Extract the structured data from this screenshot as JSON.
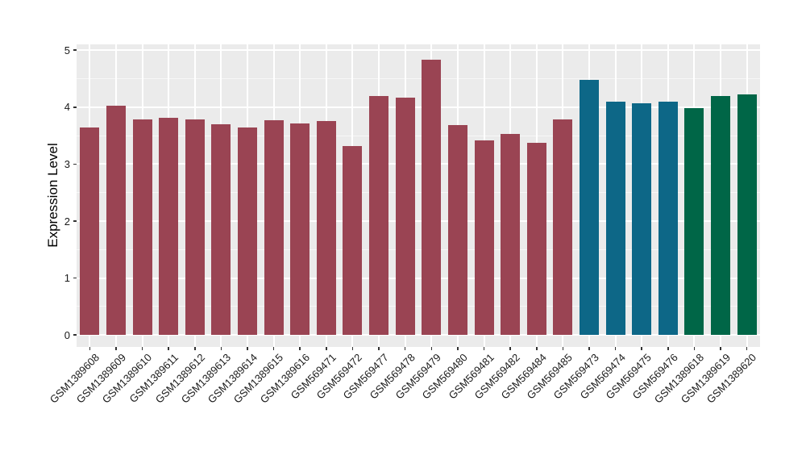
{
  "chart_data": {
    "type": "bar",
    "title": "",
    "xlabel": "",
    "ylabel": "Expression Level",
    "ylim": [
      0,
      5
    ],
    "yticks": [
      0,
      1,
      2,
      3,
      4,
      5
    ],
    "grid": true,
    "legend": "none",
    "categories": [
      "GSM1389608",
      "GSM1389609",
      "GSM1389610",
      "GSM1389611",
      "GSM1389612",
      "GSM1389613",
      "GSM1389614",
      "GSM1389615",
      "GSM1389616",
      "GSM569471",
      "GSM569472",
      "GSM569477",
      "GSM569478",
      "GSM569479",
      "GSM569480",
      "GSM569481",
      "GSM569482",
      "GSM569484",
      "GSM569485",
      "GSM569473",
      "GSM569474",
      "GSM569475",
      "GSM569476",
      "GSM1389618",
      "GSM1389619",
      "GSM1389620"
    ],
    "values": [
      3.65,
      4.03,
      3.79,
      3.82,
      3.78,
      3.7,
      3.65,
      3.77,
      3.72,
      3.75,
      3.32,
      4.2,
      4.17,
      4.83,
      3.68,
      3.41,
      3.53,
      3.37,
      3.78,
      4.48,
      4.09,
      4.07,
      4.09,
      3.98,
      4.2,
      4.22
    ],
    "bar_colors": [
      "#9A4453",
      "#9A4453",
      "#9A4453",
      "#9A4453",
      "#9A4453",
      "#9A4453",
      "#9A4453",
      "#9A4453",
      "#9A4453",
      "#9A4453",
      "#9A4453",
      "#9A4453",
      "#9A4453",
      "#9A4453",
      "#9A4453",
      "#9A4453",
      "#9A4453",
      "#9A4453",
      "#9A4453",
      "#0D6787",
      "#0D6787",
      "#0D6787",
      "#0D6787",
      "#006647",
      "#006647",
      "#006647"
    ],
    "color_groups": [
      {
        "color": "#9A4453",
        "bar_count": 19
      },
      {
        "color": "#0D6787",
        "bar_count": 4
      },
      {
        "color": "#006647",
        "bar_count": 3
      }
    ],
    "panel_background": "#EBEBEB",
    "grid_major_color": "#FFFFFF"
  }
}
